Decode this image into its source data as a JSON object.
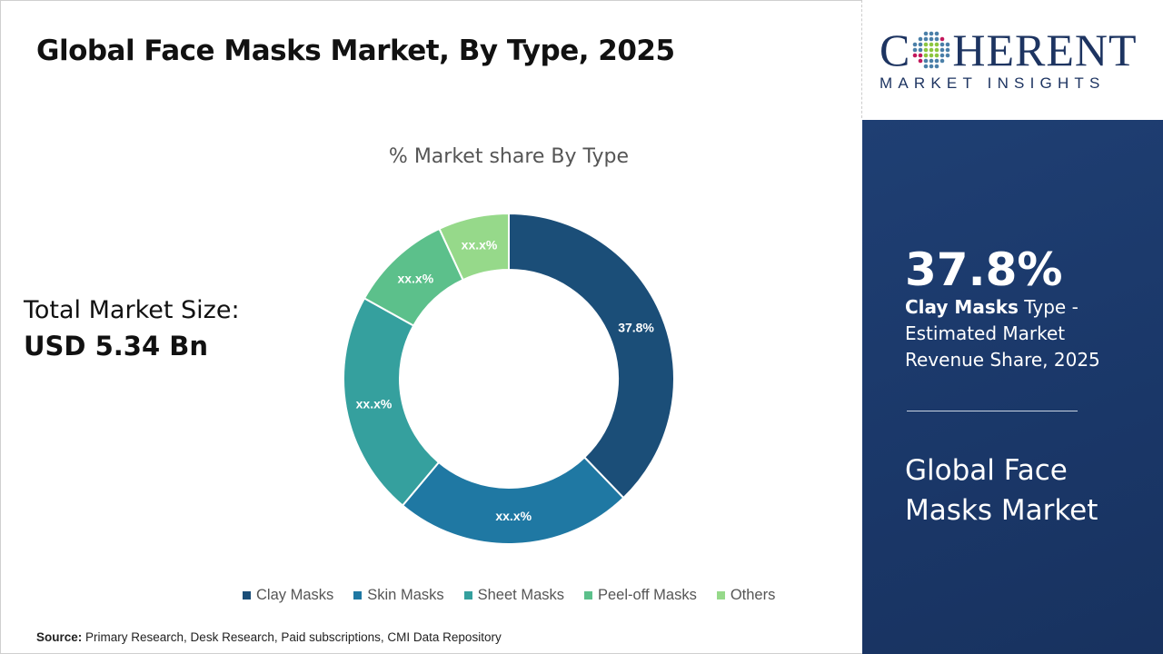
{
  "header": {
    "title": "Global Face Masks Market, By Type, 2025"
  },
  "total": {
    "label": "Total Market Size:",
    "value": "USD 5.34 Bn"
  },
  "source": {
    "label": "Source:",
    "text": "Primary Research, Desk Research, Paid subscriptions, CMI Data Repository"
  },
  "logo": {
    "text": "COHERENT",
    "tagline": "MARKET INSIGHTS"
  },
  "panel": {
    "value": "37.8%",
    "highlight": "Clay Masks",
    "desc": " Type - Estimated Market Revenue Share, 2025",
    "market": "Global Face Masks Market"
  },
  "chart_data": {
    "type": "pie",
    "donut": true,
    "title": "% Market share By Type",
    "categories": [
      "Clay Masks",
      "Skin Masks",
      "Sheet Masks",
      "Peel-off Masks",
      "Others"
    ],
    "values": [
      37.8,
      23.3,
      22.0,
      10.0,
      6.9
    ],
    "data_labels": [
      "37.8%",
      "xx.x%",
      "xx.x%",
      "xx.x%",
      "xx.x%"
    ],
    "colors": [
      "#1b4e78",
      "#1f78a3",
      "#35a09e",
      "#5cc08b",
      "#96d98a"
    ],
    "legend_position": "bottom"
  }
}
